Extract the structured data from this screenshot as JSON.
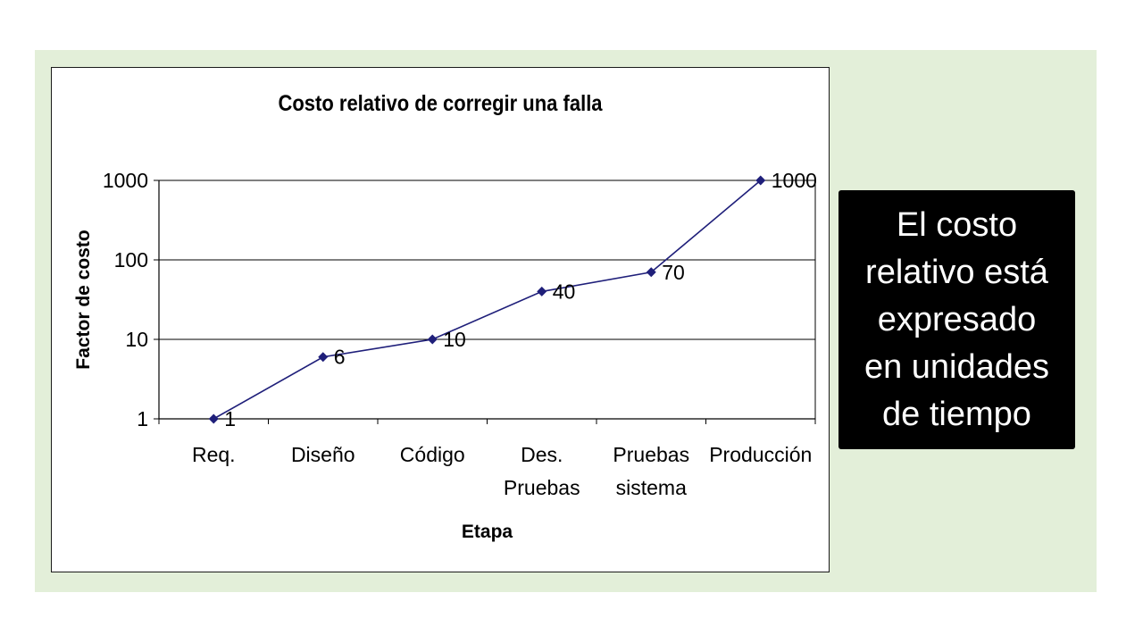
{
  "chart_data": {
    "type": "line",
    "title": "Costo relativo de corregir una falla",
    "xlabel": "Etapa",
    "ylabel": "Factor de costo",
    "yscale": "log",
    "ylim": [
      1,
      1000
    ],
    "yticks": [
      "1",
      "10",
      "100",
      "1000"
    ],
    "grid": "horizontal",
    "categories": [
      [
        "Req."
      ],
      [
        "Diseño"
      ],
      [
        "Código"
      ],
      [
        "Des.",
        "Pruebas"
      ],
      [
        "Pruebas",
        "sistema"
      ],
      [
        "Producción"
      ]
    ],
    "series": [
      {
        "values": [
          1,
          6,
          10,
          40,
          70,
          1000
        ],
        "color": "#1f1f7a"
      }
    ],
    "data_labels": [
      "1",
      "6",
      "10",
      "40",
      "70",
      "1000"
    ]
  },
  "callout": {
    "text": "El costo relativo está expresado en unidades de tiempo",
    "lines": [
      "El costo",
      "relativo está",
      "expresado",
      "en unidades",
      "de tiempo"
    ]
  },
  "colors": {
    "slide_background": "#e3efd9",
    "line": "#1f1f7a",
    "callout_background": "#000000"
  }
}
